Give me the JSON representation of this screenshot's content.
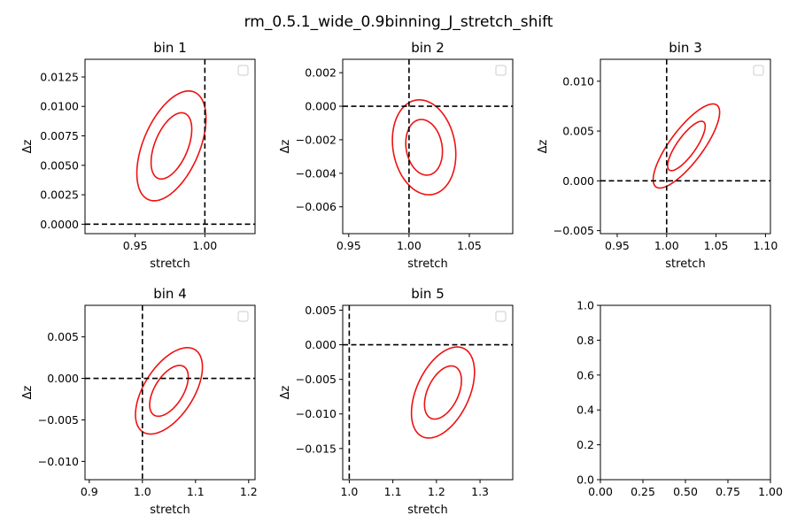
{
  "figure_title": "rm_0.5.1_wide_0.9binning_J_stretch_shift",
  "colors": {
    "contour": "#ee1111",
    "reference": "#000000",
    "axes": "#000000"
  },
  "chart_data": [
    {
      "type": "scatter",
      "title": "bin 1",
      "xlabel": "stretch",
      "ylabel": "Δz",
      "xlim": [
        0.914,
        1.036
      ],
      "ylim": [
        -0.0008,
        0.014
      ],
      "xticks": [
        0.95,
        1.0
      ],
      "xticklabels": [
        "0.95",
        "1.00"
      ],
      "yticks": [
        0,
        0.0025,
        0.005,
        0.0075,
        0.01,
        0.0125
      ],
      "yticklabels": [
        "0.0000",
        "0.0025",
        "0.0050",
        "0.0075",
        "0.0100",
        "0.0125"
      ],
      "ref_x": 1.0,
      "ref_y": 0.0,
      "legend": "upper right (empty)",
      "ellipses": [
        {
          "cx": 0.976,
          "cy": 0.00665,
          "sx": 0.0146,
          "sy": 0.00281,
          "rho": 0.5
        },
        {
          "cx": 0.976,
          "cy": 0.00665,
          "sx": 0.0248,
          "sy": 0.00466,
          "rho": 0.5
        }
      ]
    },
    {
      "type": "scatter",
      "title": "bin 2",
      "xlabel": "stretch",
      "ylabel": "Δz",
      "xlim": [
        0.945,
        1.086
      ],
      "ylim": [
        -0.0076,
        0.0028
      ],
      "xticks": [
        0.95,
        1.0,
        1.05
      ],
      "xticklabels": [
        "0.95",
        "1.00",
        "1.05"
      ],
      "yticks": [
        -0.006,
        -0.004,
        -0.002,
        0,
        0.002
      ],
      "yticklabels": [
        "−0.006",
        "−0.004",
        "−0.002",
        "0.000",
        "0.002"
      ],
      "ref_x": 1.0,
      "ref_y": 0.0,
      "legend": "upper right (empty)",
      "ellipses": [
        {
          "cx": 1.0125,
          "cy": -0.00245,
          "sx": 0.0152,
          "sy": 0.00166,
          "rho": -0.15
        },
        {
          "cx": 1.0125,
          "cy": -0.00245,
          "sx": 0.0263,
          "sy": 0.00283,
          "rho": -0.15
        }
      ]
    },
    {
      "type": "scatter",
      "title": "bin 3",
      "xlabel": "stretch",
      "ylabel": "Δz",
      "xlim": [
        0.933,
        1.105
      ],
      "ylim": [
        -0.0053,
        0.0122
      ],
      "xticks": [
        0.95,
        1.0,
        1.05,
        1.1
      ],
      "xticklabels": [
        "0.95",
        "1.00",
        "1.05",
        "1.10"
      ],
      "yticks": [
        -0.005,
        0,
        0.005,
        0.01
      ],
      "yticklabels": [
        "−0.005",
        "0.000",
        "0.005",
        "0.010"
      ],
      "ref_x": 1.0,
      "ref_y": 0.0,
      "legend": "upper right (empty)",
      "ellipses": [
        {
          "cx": 1.02,
          "cy": 0.0035,
          "sx": 0.019,
          "sy": 0.00248,
          "rho": 0.8
        },
        {
          "cx": 1.02,
          "cy": 0.0035,
          "sx": 0.0336,
          "sy": 0.00422,
          "rho": 0.8
        }
      ]
    },
    {
      "type": "scatter",
      "title": "bin 4",
      "xlabel": "stretch",
      "ylabel": "Δz",
      "xlim": [
        0.892,
        1.212
      ],
      "ylim": [
        -0.0122,
        0.0088
      ],
      "xticks": [
        0.9,
        1.0,
        1.1,
        1.2
      ],
      "xticklabels": [
        "0.9",
        "1.0",
        "1.1",
        "1.2"
      ],
      "yticks": [
        -0.01,
        -0.005,
        0,
        0.005
      ],
      "yticklabels": [
        "−0.010",
        "−0.005",
        "0.000",
        "0.005"
      ],
      "ref_x": 1.0,
      "ref_y": 0.0,
      "legend": "upper right (empty)",
      "ellipses": [
        {
          "cx": 1.05,
          "cy": -0.0015,
          "sx": 0.0363,
          "sy": 0.00306,
          "rho": 0.55
        },
        {
          "cx": 1.05,
          "cy": -0.0015,
          "sx": 0.063,
          "sy": 0.0052,
          "rho": 0.55
        }
      ]
    },
    {
      "type": "scatter",
      "title": "bin 5",
      "xlabel": "stretch",
      "ylabel": "Δz",
      "xlim": [
        0.985,
        1.375
      ],
      "ylim": [
        -0.0195,
        0.0057
      ],
      "xticks": [
        1.0,
        1.1,
        1.2,
        1.3
      ],
      "xticklabels": [
        "1.0",
        "1.1",
        "1.2",
        "1.3"
      ],
      "yticks": [
        -0.015,
        -0.01,
        -0.005,
        0,
        0.005
      ],
      "yticklabels": [
        "−0.015",
        "−0.010",
        "−0.005",
        "0.000",
        "0.005"
      ],
      "ref_x": 1.0,
      "ref_y": 0.0,
      "legend": "upper right (empty)",
      "ellipses": [
        {
          "cx": 1.215,
          "cy": -0.0069,
          "sx": 0.0424,
          "sy": 0.00384,
          "rho": 0.45
        },
        {
          "cx": 1.215,
          "cy": -0.0069,
          "sx": 0.0723,
          "sy": 0.00658,
          "rho": 0.45
        }
      ]
    },
    {
      "type": "scatter",
      "title": "",
      "xlabel": "",
      "ylabel": "",
      "xlim": [
        0,
        1
      ],
      "ylim": [
        0,
        1
      ],
      "xticks": [
        0,
        0.25,
        0.5,
        0.75,
        1.0
      ],
      "xticklabels": [
        "0.00",
        "0.25",
        "0.50",
        "0.75",
        "1.00"
      ],
      "yticks": [
        0,
        0.2,
        0.4,
        0.6,
        0.8,
        1.0
      ],
      "yticklabels": [
        "0.0",
        "0.2",
        "0.4",
        "0.6",
        "0.8",
        "1.0"
      ],
      "empty": true,
      "ellipses": []
    }
  ]
}
